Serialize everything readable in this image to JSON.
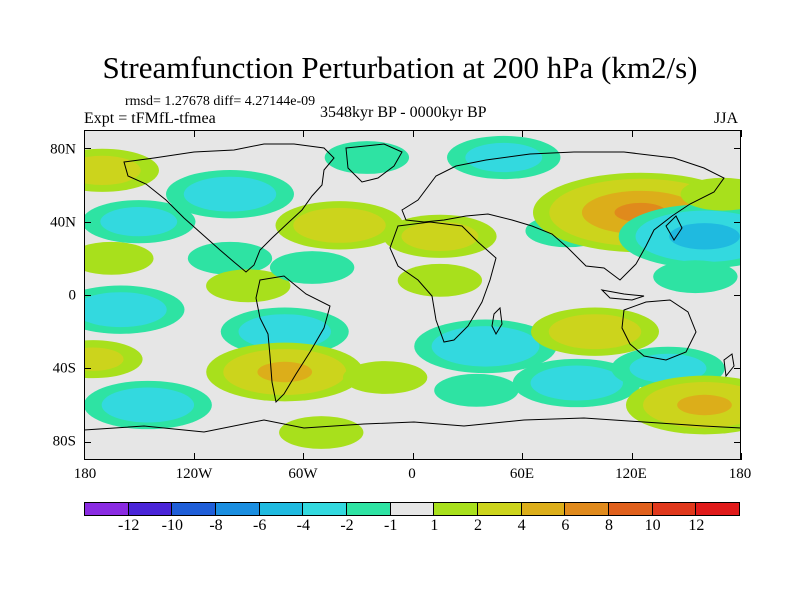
{
  "figure": {
    "title": "Streamfunction Perturbation at 200 hPa (km2/s)",
    "stats": "rmsd= 1.27678 diff= 4.27144e-09",
    "experiment": "Expt = tFMfL-tfmea",
    "period": "3548kyr BP - 0000kyr BP",
    "season": "JJA"
  },
  "axes": {
    "y_ticks": [
      "80N",
      "40N",
      "0",
      "40S",
      "80S"
    ],
    "x_ticks": [
      "180",
      "120W",
      "60W",
      "0",
      "60E",
      "120E",
      "180"
    ]
  },
  "colorbar": {
    "colors": [
      "#8a2be2",
      "#4a25d8",
      "#1f5ed8",
      "#1a8ee0",
      "#1fbae0",
      "#33d9df",
      "#2ee3a3",
      "#e6e6e6",
      "#a8e01c",
      "#ccd41c",
      "#dcae1a",
      "#e08a1c",
      "#e0601c",
      "#e0381c",
      "#e01a1a"
    ],
    "labels": [
      "-12",
      "-10",
      "-8",
      "-6",
      "-4",
      "-2",
      "-1",
      "1",
      "2",
      "4",
      "6",
      "8",
      "10",
      "12"
    ]
  },
  "chart_data": {
    "type": "heatmap",
    "title": "Streamfunction Perturbation at 200 hPa (km2/s)",
    "projection": "cylindrical-equidistant",
    "lon_range": [
      -180,
      180
    ],
    "lat_range": [
      -90,
      90
    ],
    "levels": [
      -12,
      -10,
      -8,
      -6,
      -4,
      -2,
      -1,
      1,
      2,
      4,
      6,
      8,
      10,
      12
    ],
    "anomalies": [
      {
        "lon": -170,
        "lat": 68,
        "value": 2.5
      },
      {
        "lon": -150,
        "lat": 40,
        "value": -2.5
      },
      {
        "lon": -165,
        "lat": 20,
        "value": 1.5
      },
      {
        "lon": -100,
        "lat": 20,
        "value": -1.5
      },
      {
        "lon": -160,
        "lat": -8,
        "value": -3.0
      },
      {
        "lon": -90,
        "lat": 5,
        "value": 1.5
      },
      {
        "lon": -70,
        "lat": -20,
        "value": -3.0
      },
      {
        "lon": -100,
        "lat": 55,
        "value": -3.0
      },
      {
        "lon": -25,
        "lat": 75,
        "value": -1.5
      },
      {
        "lon": 50,
        "lat": 75,
        "value": -2.5
      },
      {
        "lon": -40,
        "lat": 38,
        "value": 3.0
      },
      {
        "lon": 15,
        "lat": 32,
        "value": 2.5
      },
      {
        "lon": -55,
        "lat": 15,
        "value": -1.5
      },
      {
        "lon": 15,
        "lat": 8,
        "value": 1.5
      },
      {
        "lon": 85,
        "lat": 35,
        "value": -1.5
      },
      {
        "lon": 125,
        "lat": 45,
        "value": 6.0
      },
      {
        "lon": 160,
        "lat": 32,
        "value": -4.5
      },
      {
        "lon": 170,
        "lat": 55,
        "value": 1.5
      },
      {
        "lon": 155,
        "lat": 10,
        "value": -1.5
      },
      {
        "lon": 40,
        "lat": -28,
        "value": -3.5
      },
      {
        "lon": 100,
        "lat": -20,
        "value": 3.0
      },
      {
        "lon": 90,
        "lat": -48,
        "value": -3.0
      },
      {
        "lon": 140,
        "lat": -40,
        "value": -2.5
      },
      {
        "lon": 160,
        "lat": -60,
        "value": 4.0
      },
      {
        "lon": -70,
        "lat": -42,
        "value": 4.0
      },
      {
        "lon": -145,
        "lat": -60,
        "value": -3.0
      },
      {
        "lon": -15,
        "lat": -45,
        "value": 1.5
      },
      {
        "lon": 35,
        "lat": -52,
        "value": -1.5
      },
      {
        "lon": -175,
        "lat": -35,
        "value": 2.0
      },
      {
        "lon": -50,
        "lat": -75,
        "value": 1.5
      }
    ]
  }
}
